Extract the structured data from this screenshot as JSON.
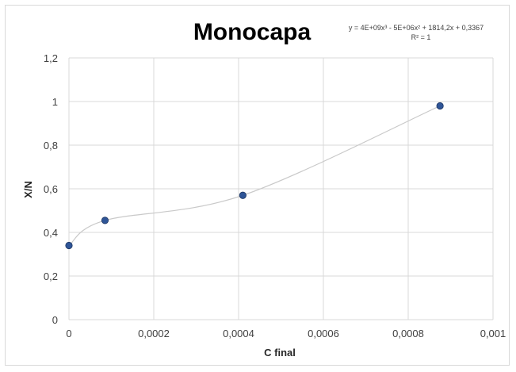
{
  "chart_data": {
    "type": "scatter",
    "title": "Monocapa",
    "xlabel": "C final",
    "ylabel": "X/N",
    "xlim": [
      0,
      0.001
    ],
    "ylim": [
      0,
      1.2
    ],
    "x_ticks": [
      "0",
      "0,0002",
      "0,0004",
      "0,0006",
      "0,0008",
      "0,001"
    ],
    "y_ticks": [
      "0",
      "0,2",
      "0,4",
      "0,6",
      "0,8",
      "1",
      "1,2"
    ],
    "grid": true,
    "legend": "none",
    "points": [
      {
        "x": 0.0,
        "y": 0.34
      },
      {
        "x": 8.5e-05,
        "y": 0.455
      },
      {
        "x": 0.00041,
        "y": 0.57
      },
      {
        "x": 0.000875,
        "y": 0.98
      }
    ],
    "trendline": {
      "type": "polynomial",
      "equation": "y = 4E+09x³ - 5E+06x² + 1814,2x + 0,3367",
      "r_squared": "R² = 1"
    },
    "colors": {
      "points": "#2f5597",
      "trendline": "#c9c9c9",
      "grid": "#d9d9d9"
    }
  }
}
